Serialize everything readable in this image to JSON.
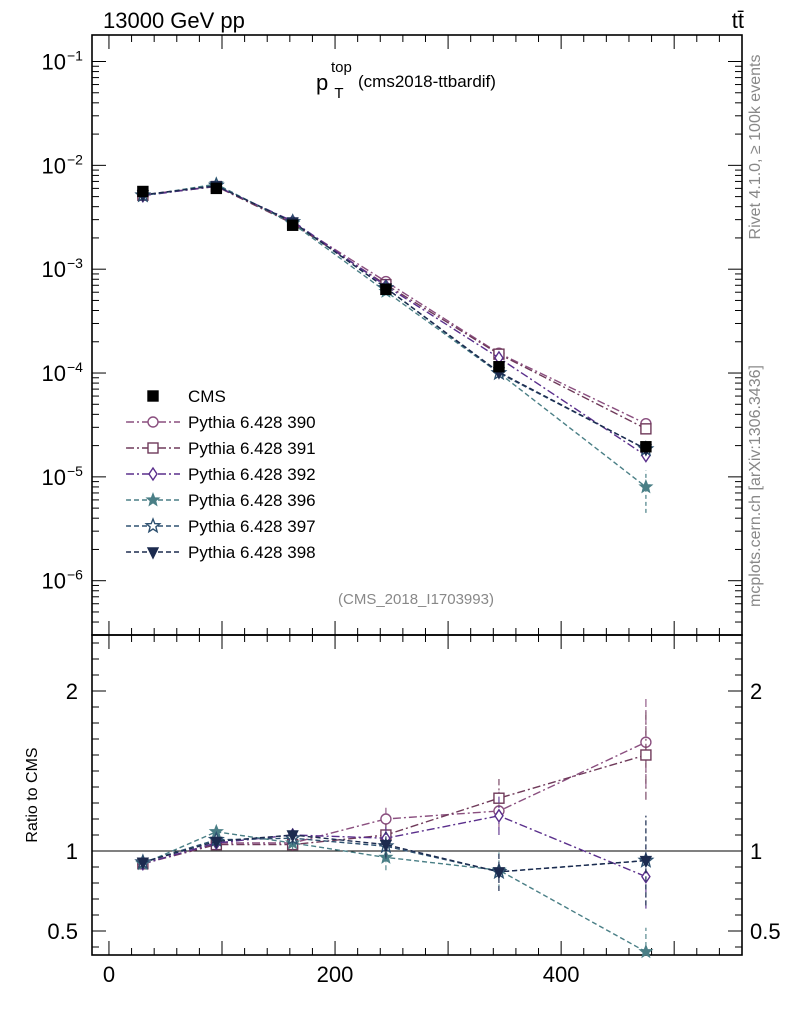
{
  "header": {
    "left": "13000 GeV pp",
    "right": "tt̄"
  },
  "side_labels": {
    "rivet": "Rivet 4.1.0, ≥ 100k events",
    "mcplots": "mcplots.cern.ch [arXiv:1306.3436]"
  },
  "colors": {
    "cms": "#000000",
    "p390": "#8a4f7f",
    "p391": "#6f3a5a",
    "p392": "#5a2f8c",
    "p396": "#4a7f86",
    "p397": "#2e5170",
    "p398": "#1c2b4f",
    "ref_line": "#000000",
    "watermark": "#888888"
  },
  "chart_data": [
    {
      "type": "scatter",
      "panel": "main",
      "title_main": "p",
      "title_sub": "T",
      "title_sup": "top",
      "title_suffix": "(cms2018-ttbardif)",
      "watermark": "(CMS_2018_I1703993)",
      "xlabel": "",
      "ylabel": "",
      "xlim": [
        -15,
        560
      ],
      "ylim": [
        3e-07,
        0.18
      ],
      "yscale": "log",
      "ytick_values": [
        1e-06,
        1e-05,
        0.0001,
        0.001,
        0.01,
        0.1
      ],
      "ytick_labels": [
        {
          "base": "10",
          "exp": "−6"
        },
        {
          "base": "10",
          "exp": "−5"
        },
        {
          "base": "10",
          "exp": "−4"
        },
        {
          "base": "10",
          "exp": "−3"
        },
        {
          "base": "10",
          "exp": "−2"
        },
        {
          "base": "10",
          "exp": "−1"
        }
      ],
      "legend_position": "left-center",
      "x": [
        30,
        95,
        162.5,
        245,
        345,
        475
      ],
      "series": [
        {
          "name": "CMS",
          "marker": "square-filled",
          "dash": "none",
          "color_key": "cms",
          "values": [
            0.0056,
            0.006,
            0.00265,
            0.00064,
            0.000115,
            1.95e-05
          ]
        },
        {
          "name": "Pythia 6.428 390",
          "marker": "circle-open",
          "dash": "dashdot",
          "color_key": "p390",
          "values": [
            0.0052,
            0.0063,
            0.0028,
            0.00076,
            0.000155,
            3.25e-05
          ]
        },
        {
          "name": "Pythia 6.428 391",
          "marker": "square-open",
          "dash": "dashdot",
          "color_key": "p391",
          "values": [
            0.00515,
            0.00625,
            0.00275,
            0.00071,
            0.000152,
            2.9e-05
          ]
        },
        {
          "name": "Pythia 6.428 392",
          "marker": "diamond-open",
          "dash": "dashdot",
          "color_key": "p392",
          "values": [
            0.0051,
            0.0063,
            0.0029,
            0.00069,
            0.00014,
            1.6e-05
          ]
        },
        {
          "name": "Pythia 6.428 396",
          "marker": "star-filled",
          "dash": "dashed",
          "color_key": "p396",
          "values": [
            0.0051,
            0.0066,
            0.00275,
            0.00061,
            0.0001,
            8e-06
          ]
        },
        {
          "name": "Pythia 6.428 397",
          "marker": "star-open",
          "dash": "dashed",
          "color_key": "p397",
          "values": [
            0.00515,
            0.0064,
            0.00285,
            0.00066,
            0.0001,
            1.85e-05
          ]
        },
        {
          "name": "Pythia 6.428 398",
          "marker": "triangle-down-filled",
          "dash": "dashed",
          "color_key": "p398",
          "values": [
            0.0052,
            0.00635,
            0.00285,
            0.00066,
            0.000102,
            1.85e-05
          ]
        }
      ]
    },
    {
      "type": "scatter",
      "panel": "ratio",
      "ylabel": "Ratio to CMS",
      "xlabel": "",
      "xlim": [
        -15,
        560
      ],
      "ylim": [
        0.35,
        2.35
      ],
      "reference": 1.0,
      "ytick_values": [
        0.5,
        1,
        2
      ],
      "ytick_labels": [
        "0.5",
        "1",
        "2"
      ],
      "xtick_values": [
        0,
        200,
        400
      ],
      "xtick_labels": [
        "0",
        "200",
        "400"
      ],
      "x": [
        30,
        95,
        162.5,
        245,
        345,
        475
      ],
      "series": [
        {
          "name": "Pythia 6.428 390",
          "marker": "circle-open",
          "dash": "dashdot",
          "color_key": "p390",
          "values": [
            0.92,
            1.05,
            1.05,
            1.2,
            1.25,
            1.68
          ],
          "errors": [
            0.02,
            0.03,
            0.04,
            0.08,
            0.12,
            0.28
          ]
        },
        {
          "name": "Pythia 6.428 391",
          "marker": "square-open",
          "dash": "dashdot",
          "color_key": "p391",
          "values": [
            0.92,
            1.04,
            1.04,
            1.1,
            1.33,
            1.6
          ],
          "errors": [
            0.02,
            0.03,
            0.04,
            0.08,
            0.12,
            0.28
          ]
        },
        {
          "name": "Pythia 6.428 392",
          "marker": "diamond-open",
          "dash": "dashdot",
          "color_key": "p392",
          "values": [
            0.92,
            1.05,
            1.1,
            1.08,
            1.22,
            0.84
          ],
          "errors": [
            0.02,
            0.03,
            0.04,
            0.08,
            0.12,
            0.2
          ]
        },
        {
          "name": "Pythia 6.428 396",
          "marker": "star-filled",
          "dash": "dashed",
          "color_key": "p396",
          "values": [
            0.92,
            1.12,
            1.05,
            0.96,
            0.88,
            0.37
          ],
          "errors": [
            0.02,
            0.03,
            0.04,
            0.08,
            0.12,
            0.15
          ]
        },
        {
          "name": "Pythia 6.428 397",
          "marker": "star-open",
          "dash": "dashed",
          "color_key": "p397",
          "values": [
            0.93,
            1.07,
            1.08,
            1.03,
            0.87,
            0.94
          ],
          "errors": [
            0.02,
            0.03,
            0.04,
            0.08,
            0.12,
            0.28
          ]
        },
        {
          "name": "Pythia 6.428 398",
          "marker": "triangle-down-filled",
          "dash": "dashed",
          "color_key": "p398",
          "values": [
            0.93,
            1.06,
            1.1,
            1.04,
            0.87,
            0.94
          ],
          "errors": [
            0.02,
            0.03,
            0.04,
            0.08,
            0.12,
            0.28
          ]
        }
      ]
    }
  ]
}
